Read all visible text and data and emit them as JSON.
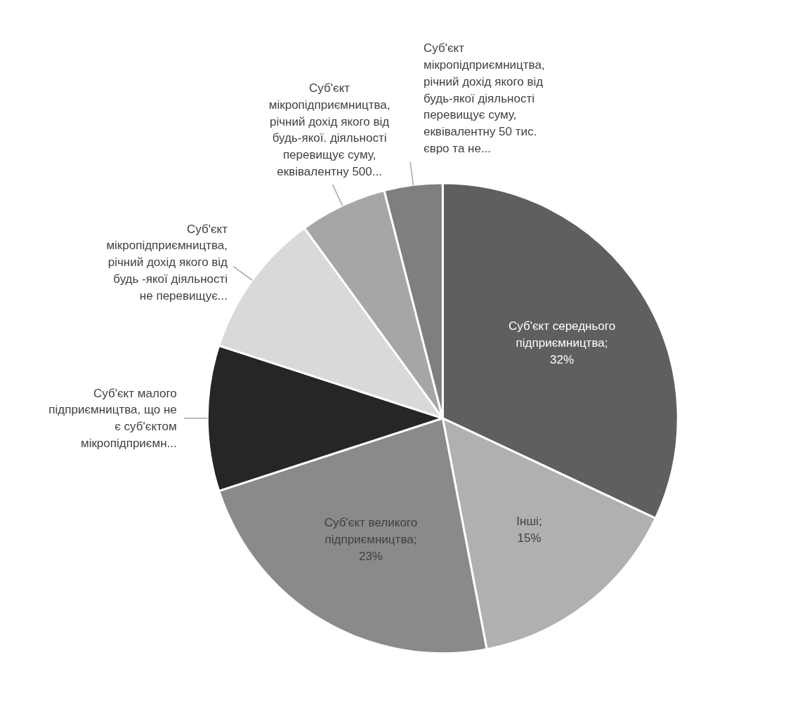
{
  "chart_data": {
    "type": "pie",
    "categories": [
      "Суб'єкт середнього підприємництва",
      "Інші",
      "Суб'єкт великого підприємництва",
      "Суб'єкт малого підприємництва, що не є суб'єктом мікропідприємн...",
      "Суб'єкт мікропідприємництва, річний дохід якого від будь -якої діяльності не перевищує...",
      "Суб'єкт мікропідприємництва, річний дохід якого від будь-якої. діяльності перевищує суму, еквівалентну 500...",
      "Суб'єкт мікропідприємництва, річний дохід якого від будь-якої діяльності перевищує суму, еквівалентну 50 тис. євро та не..."
    ],
    "values": [
      32,
      15,
      23,
      10,
      10,
      6,
      4
    ],
    "colors": [
      "#5f5f5f",
      "#b0b0b0",
      "#8a8a8a",
      "#262626",
      "#d9d9d9",
      "#a6a6a6",
      "#7f7f7f"
    ],
    "value_labels": [
      ";\n32%",
      ";\n15%",
      ";\n23%",
      null,
      null,
      null,
      null
    ]
  }
}
